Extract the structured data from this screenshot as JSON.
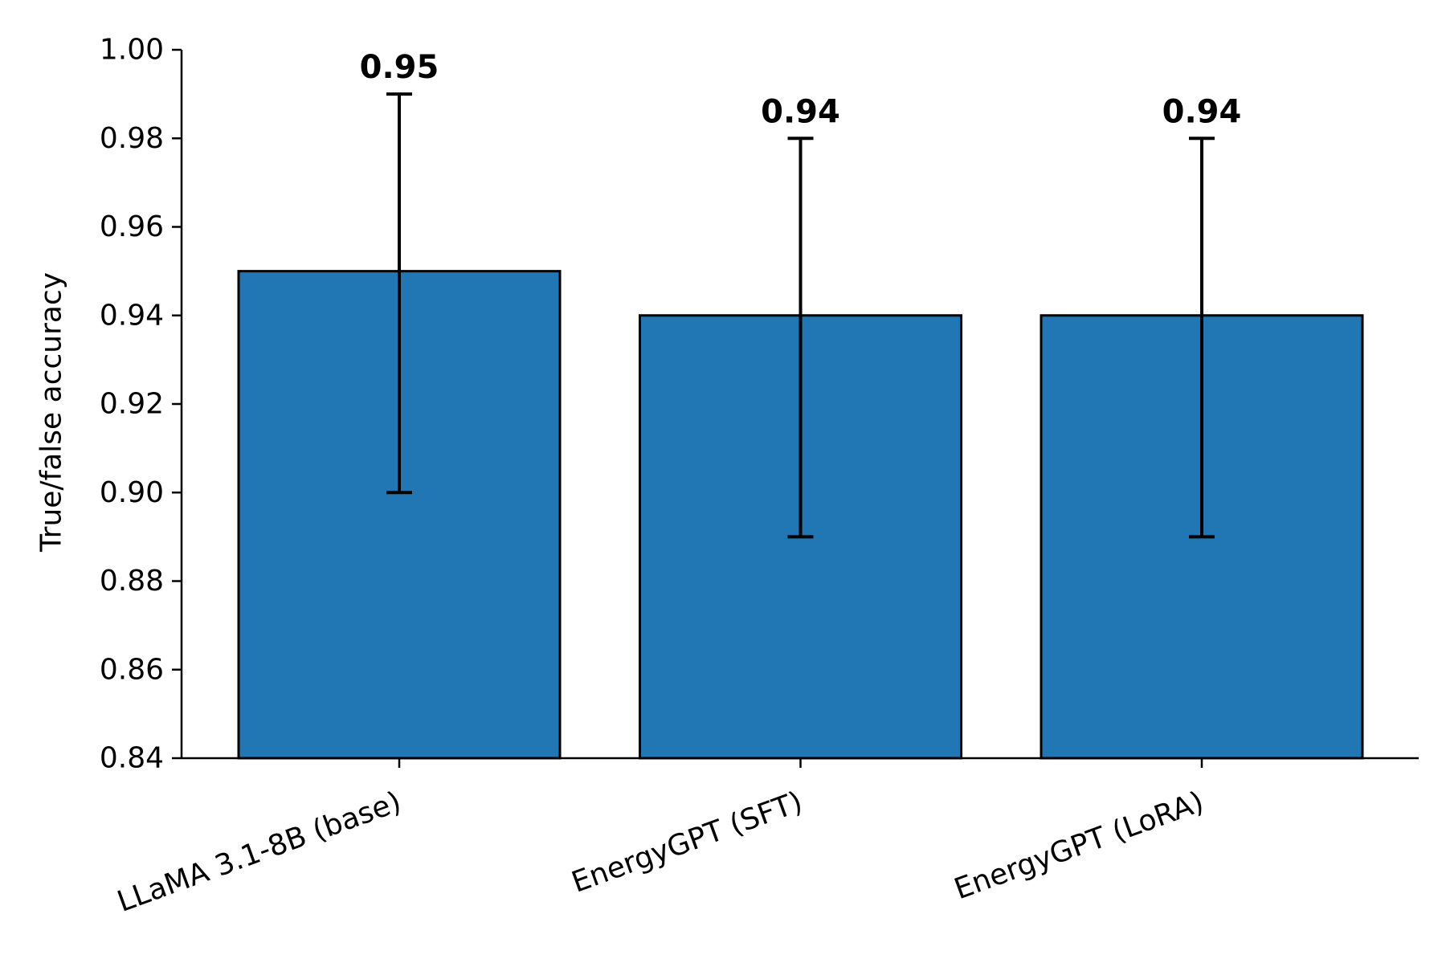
{
  "chart_data": {
    "type": "bar",
    "title": "",
    "xlabel": "",
    "ylabel": "True/false accuracy",
    "categories": [
      "LLaMA 3.1-8B (base)",
      "EnergyGPT (SFT)",
      "EnergyGPT (LoRA)"
    ],
    "values": [
      0.95,
      0.94,
      0.94
    ],
    "error_low": [
      0.9,
      0.89,
      0.89
    ],
    "error_high": [
      0.99,
      0.98,
      0.98
    ],
    "value_labels": [
      "0.95",
      "0.94",
      "0.94"
    ],
    "ylim": [
      0.84,
      1.0
    ],
    "yticks": [
      0.84,
      0.86,
      0.88,
      0.9,
      0.92,
      0.94,
      0.96,
      0.98,
      1.0
    ],
    "ytick_labels": [
      "0.84",
      "0.86",
      "0.88",
      "0.90",
      "0.92",
      "0.94",
      "0.96",
      "0.98",
      "1.00"
    ],
    "grid": false,
    "bar_color": "#2077b4",
    "bar_edge_color": "#000000"
  }
}
